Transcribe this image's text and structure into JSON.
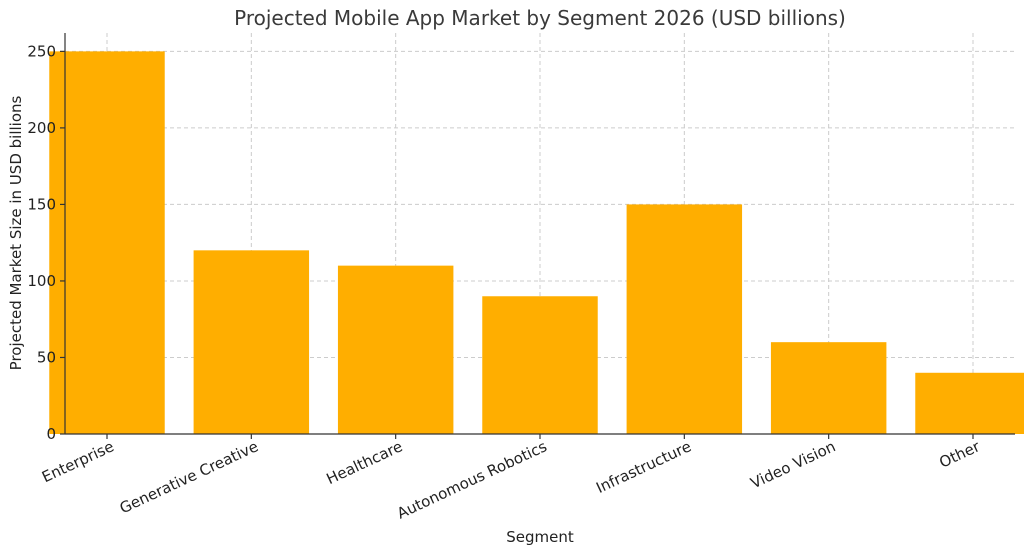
{
  "chart_data": {
    "type": "bar",
    "title": "Projected Mobile App Market by Segment 2026 (USD billions)",
    "xlabel": "Segment",
    "ylabel": "Projected Market Size in USD billions",
    "categories": [
      "Enterprise",
      "Generative Creative",
      "Healthcare",
      "Autonomous Robotics",
      "Infrastructure",
      "Video Vision",
      "Other"
    ],
    "values": [
      250,
      120,
      110,
      90,
      150,
      60,
      40
    ],
    "ylim": [
      0,
      262
    ],
    "yticks": [
      0,
      50,
      100,
      150,
      200,
      250
    ],
    "grid": true,
    "bar_color": "#ffae00"
  }
}
